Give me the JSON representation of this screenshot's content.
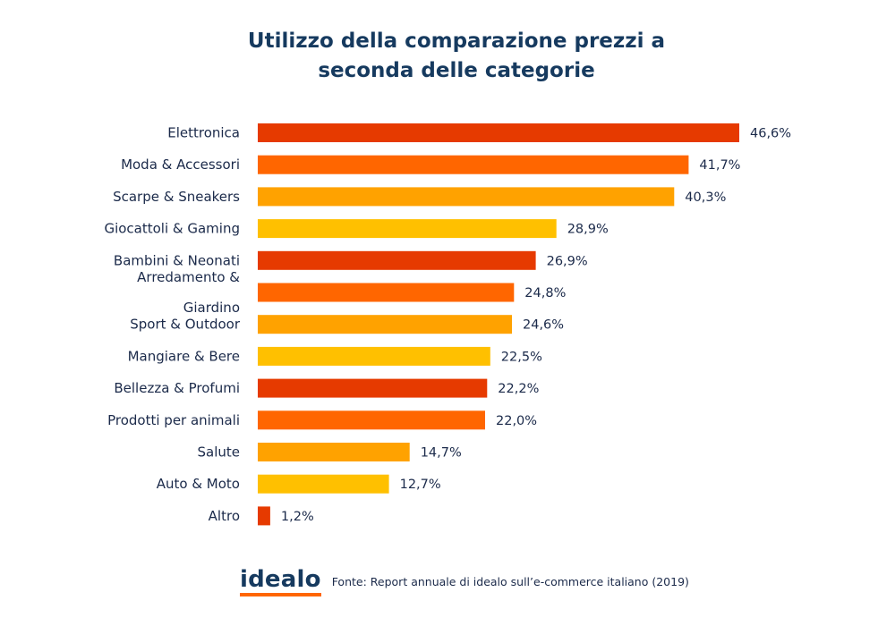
{
  "chart_title_line1": "Utilizzo della comparazione prezzi a",
  "chart_title_line2": "seconda delle categorie",
  "brand": "idealo",
  "source": "Fonte: Report annuale di idealo sull’e-commerce italiano (2019)",
  "colors": {
    "red": "#e63a00",
    "orange": "#ff6600",
    "amber": "#ffa200",
    "yellow": "#ffc000",
    "navy": "#163a5f"
  },
  "chart_data": {
    "type": "bar",
    "orientation": "horizontal",
    "title": "Utilizzo della comparazione prezzi a seconda delle categorie",
    "categories": [
      [
        "Elettronica"
      ],
      [
        "Moda & Accessori"
      ],
      [
        "Scarpe & Sneakers"
      ],
      [
        "Giocattoli & Gaming"
      ],
      [
        "Bambini & Neonati"
      ],
      [
        "Arredamento &",
        "Giardino"
      ],
      [
        "Sport & Outdoor"
      ],
      [
        "Mangiare & Bere"
      ],
      [
        "Bellezza & Profumi"
      ],
      [
        "Prodotti per animali"
      ],
      [
        "Salute"
      ],
      [
        "Auto & Moto"
      ],
      [
        "Altro"
      ]
    ],
    "values": [
      46.6,
      41.7,
      40.3,
      28.9,
      26.9,
      24.8,
      24.6,
      22.5,
      22.2,
      22.0,
      14.7,
      12.7,
      1.2
    ],
    "value_labels": [
      "46,6%",
      "41,7%",
      "40,3%",
      "28,9%",
      "26,9%",
      "24,8%",
      "24,6%",
      "22,5%",
      "22,2%",
      "22,0%",
      "14,7%",
      "12,7%",
      "1,2%"
    ],
    "bar_colors": [
      "#e63a00",
      "#ff6600",
      "#ffa200",
      "#ffc000",
      "#e63a00",
      "#ff6600",
      "#ffa200",
      "#ffc000",
      "#e63a00",
      "#ff6600",
      "#ffa200",
      "#ffc000",
      "#e63a00"
    ],
    "xlabel": "",
    "ylabel": "",
    "xlim": [
      0,
      46.6
    ],
    "grid": false,
    "legend": "none"
  }
}
